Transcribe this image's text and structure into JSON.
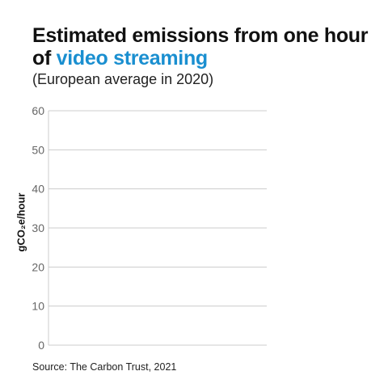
{
  "header": {
    "title_part1": "Estimated emissions from one hour of ",
    "title_highlight": "video streaming",
    "subtitle": "(European average in 2020)"
  },
  "footer": {
    "source": "Source: The Carbon Trust, 2021"
  },
  "chart_data": {
    "type": "bar",
    "title": "Estimated emissions from one hour of video streaming",
    "subtitle": "(European average in 2020)",
    "xlabel": "",
    "ylabel": "gCO₂e/hour",
    "ylim": [
      0,
      60
    ],
    "yticks": [
      0,
      10,
      20,
      30,
      40,
      50,
      60
    ],
    "categories": [],
    "values": [],
    "grid": true
  },
  "colors": {
    "highlight": "#1a8fd0",
    "grid": "#cccccc",
    "tick_text": "#666666"
  }
}
